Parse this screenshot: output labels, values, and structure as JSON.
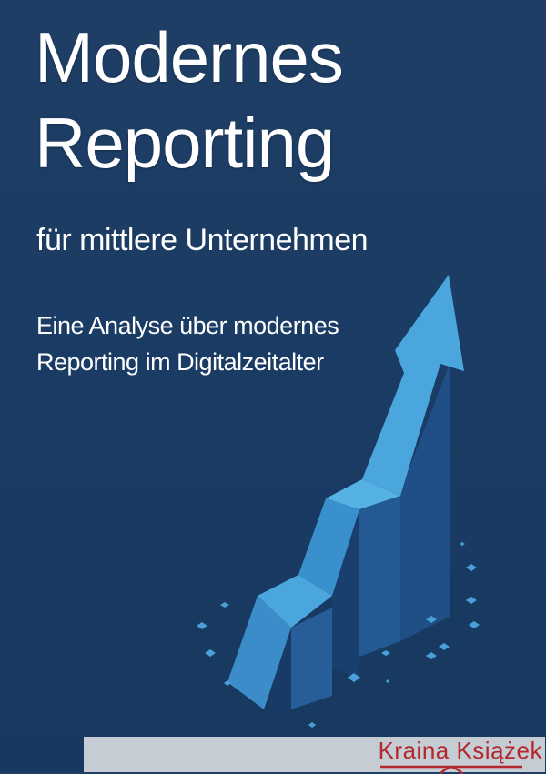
{
  "cover": {
    "title_line1": "Modernes",
    "title_line2": "Reporting",
    "subtitle": "für mittlere Unternehmen",
    "description_line1": "Eine Analyse über modernes",
    "description_line2": "Reporting im Digitalzeitalter",
    "illustration": "rising-arrow-bar-chart-icon"
  },
  "footer": {
    "logo_text": "Kraina Książek",
    "logo_color": "#b3282d"
  },
  "colors": {
    "background": "#1c3c64",
    "accent": "#4aa6dc"
  }
}
